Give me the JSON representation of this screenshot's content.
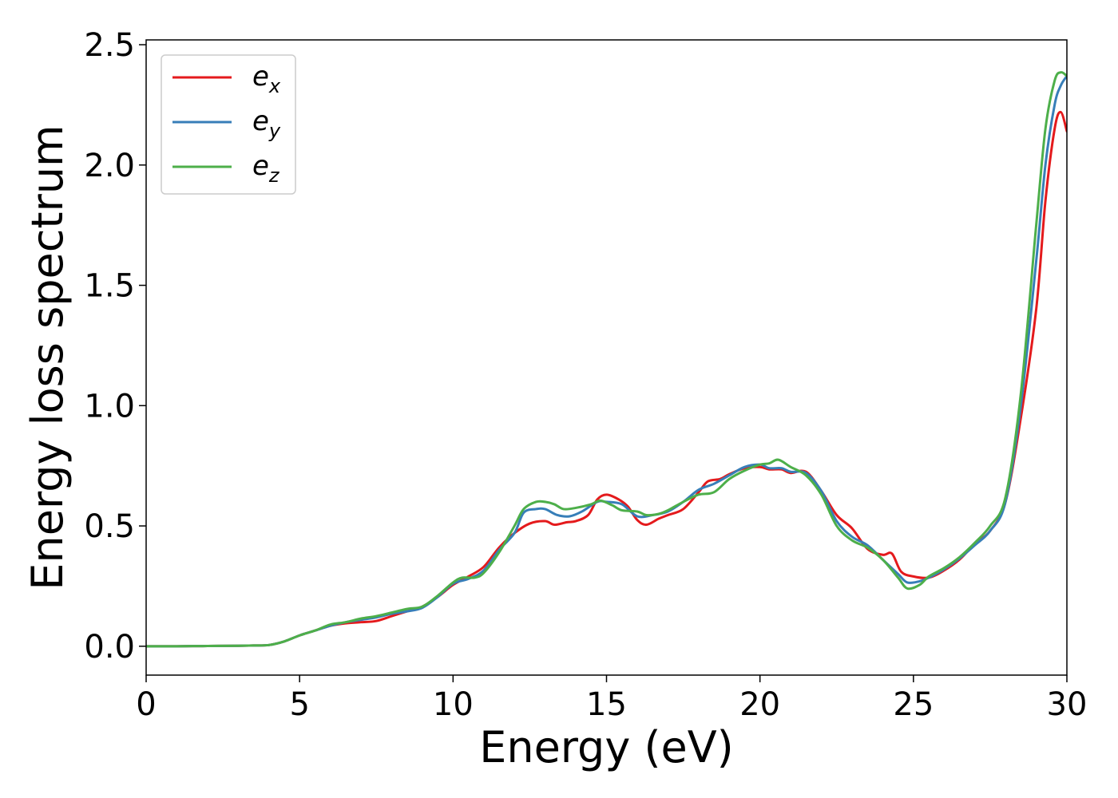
{
  "chart_data": {
    "type": "line",
    "title": "",
    "xlabel": "Energy (eV)",
    "ylabel": "Energy loss spectrum",
    "xlim": [
      0,
      30
    ],
    "ylim": [
      -0.12,
      2.52
    ],
    "xticks": [
      0,
      5,
      10,
      15,
      20,
      25,
      30
    ],
    "xtick_labels": [
      "0",
      "5",
      "10",
      "15",
      "20",
      "25",
      "30"
    ],
    "yticks": [
      0.0,
      0.5,
      1.0,
      1.5,
      2.0,
      2.5
    ],
    "ytick_labels": [
      "0.0",
      "0.5",
      "1.0",
      "1.5",
      "2.0",
      "2.5"
    ],
    "grid": false,
    "legend": "top-left",
    "series": [
      {
        "name": "e_x",
        "label_base": "e",
        "label_sub": "x",
        "color": "#e41a1c",
        "points": [
          [
            0,
            0
          ],
          [
            1,
            0
          ],
          [
            2,
            0.001
          ],
          [
            3,
            0.002
          ],
          [
            3.5,
            0.003
          ],
          [
            4,
            0.005
          ],
          [
            4.5,
            0.02
          ],
          [
            5,
            0.045
          ],
          [
            5.5,
            0.065
          ],
          [
            6,
            0.085
          ],
          [
            6.5,
            0.095
          ],
          [
            7,
            0.1
          ],
          [
            7.5,
            0.105
          ],
          [
            8,
            0.125
          ],
          [
            8.5,
            0.145
          ],
          [
            9,
            0.165
          ],
          [
            9.5,
            0.205
          ],
          [
            10,
            0.255
          ],
          [
            10.5,
            0.29
          ],
          [
            11,
            0.33
          ],
          [
            11.5,
            0.41
          ],
          [
            12,
            0.47
          ],
          [
            12.5,
            0.51
          ],
          [
            13,
            0.52
          ],
          [
            13.3,
            0.505
          ],
          [
            13.7,
            0.515
          ],
          [
            14,
            0.52
          ],
          [
            14.4,
            0.545
          ],
          [
            14.7,
            0.61
          ],
          [
            15,
            0.63
          ],
          [
            15.4,
            0.61
          ],
          [
            15.7,
            0.58
          ],
          [
            16,
            0.525
          ],
          [
            16.3,
            0.505
          ],
          [
            16.7,
            0.53
          ],
          [
            17,
            0.545
          ],
          [
            17.5,
            0.57
          ],
          [
            18,
            0.64
          ],
          [
            18.3,
            0.685
          ],
          [
            18.7,
            0.695
          ],
          [
            19,
            0.715
          ],
          [
            19.5,
            0.74
          ],
          [
            20,
            0.745
          ],
          [
            20.3,
            0.735
          ],
          [
            20.7,
            0.735
          ],
          [
            21,
            0.72
          ],
          [
            21.5,
            0.725
          ],
          [
            22,
            0.645
          ],
          [
            22.5,
            0.545
          ],
          [
            23,
            0.49
          ],
          [
            23.5,
            0.405
          ],
          [
            24,
            0.38
          ],
          [
            24.3,
            0.385
          ],
          [
            24.6,
            0.31
          ],
          [
            25,
            0.29
          ],
          [
            25.5,
            0.285
          ],
          [
            26,
            0.315
          ],
          [
            26.5,
            0.36
          ],
          [
            27,
            0.425
          ],
          [
            27.5,
            0.48
          ],
          [
            28,
            0.6
          ],
          [
            28.5,
            0.95
          ],
          [
            29,
            1.4
          ],
          [
            29.3,
            1.85
          ],
          [
            29.6,
            2.15
          ],
          [
            29.8,
            2.22
          ],
          [
            30,
            2.14
          ]
        ]
      },
      {
        "name": "e_y",
        "label_base": "e",
        "label_sub": "y",
        "color": "#377eb8",
        "points": [
          [
            0,
            0
          ],
          [
            1,
            0
          ],
          [
            2,
            0.001
          ],
          [
            3,
            0.002
          ],
          [
            3.5,
            0.003
          ],
          [
            4,
            0.005
          ],
          [
            4.5,
            0.02
          ],
          [
            5,
            0.045
          ],
          [
            5.5,
            0.065
          ],
          [
            6,
            0.085
          ],
          [
            6.5,
            0.1
          ],
          [
            7,
            0.11
          ],
          [
            7.5,
            0.12
          ],
          [
            8,
            0.135
          ],
          [
            8.5,
            0.145
          ],
          [
            9,
            0.16
          ],
          [
            9.5,
            0.205
          ],
          [
            10,
            0.26
          ],
          [
            10.5,
            0.28
          ],
          [
            11,
            0.315
          ],
          [
            11.5,
            0.4
          ],
          [
            12,
            0.47
          ],
          [
            12.3,
            0.555
          ],
          [
            12.7,
            0.57
          ],
          [
            13,
            0.57
          ],
          [
            13.4,
            0.545
          ],
          [
            13.8,
            0.54
          ],
          [
            14.2,
            0.56
          ],
          [
            14.7,
            0.6
          ],
          [
            15,
            0.6
          ],
          [
            15.5,
            0.59
          ],
          [
            16,
            0.54
          ],
          [
            16.5,
            0.545
          ],
          [
            17,
            0.56
          ],
          [
            17.5,
            0.6
          ],
          [
            18,
            0.65
          ],
          [
            18.5,
            0.675
          ],
          [
            19,
            0.71
          ],
          [
            19.5,
            0.745
          ],
          [
            20,
            0.755
          ],
          [
            20.3,
            0.74
          ],
          [
            20.7,
            0.74
          ],
          [
            21,
            0.725
          ],
          [
            21.5,
            0.72
          ],
          [
            22,
            0.645
          ],
          [
            22.5,
            0.52
          ],
          [
            23,
            0.455
          ],
          [
            23.5,
            0.42
          ],
          [
            24,
            0.36
          ],
          [
            24.5,
            0.3
          ],
          [
            24.8,
            0.265
          ],
          [
            25.2,
            0.27
          ],
          [
            25.5,
            0.285
          ],
          [
            26,
            0.32
          ],
          [
            26.5,
            0.365
          ],
          [
            27,
            0.42
          ],
          [
            27.5,
            0.48
          ],
          [
            28,
            0.6
          ],
          [
            28.5,
            1.0
          ],
          [
            29,
            1.6
          ],
          [
            29.3,
            2.0
          ],
          [
            29.6,
            2.25
          ],
          [
            29.8,
            2.33
          ],
          [
            30,
            2.37
          ]
        ]
      },
      {
        "name": "e_z",
        "label_base": "e",
        "label_sub": "z",
        "color": "#4daf4a",
        "points": [
          [
            0,
            0
          ],
          [
            1,
            0
          ],
          [
            2,
            0.001
          ],
          [
            3,
            0.002
          ],
          [
            3.5,
            0.003
          ],
          [
            4,
            0.005
          ],
          [
            4.5,
            0.02
          ],
          [
            5,
            0.045
          ],
          [
            5.5,
            0.065
          ],
          [
            6,
            0.09
          ],
          [
            6.5,
            0.1
          ],
          [
            7,
            0.115
          ],
          [
            7.5,
            0.125
          ],
          [
            8,
            0.14
          ],
          [
            8.5,
            0.155
          ],
          [
            9,
            0.165
          ],
          [
            9.5,
            0.21
          ],
          [
            10,
            0.265
          ],
          [
            10.3,
            0.285
          ],
          [
            10.7,
            0.285
          ],
          [
            11,
            0.305
          ],
          [
            11.5,
            0.39
          ],
          [
            12,
            0.5
          ],
          [
            12.3,
            0.57
          ],
          [
            12.7,
            0.6
          ],
          [
            13,
            0.6
          ],
          [
            13.3,
            0.59
          ],
          [
            13.6,
            0.57
          ],
          [
            14,
            0.575
          ],
          [
            14.5,
            0.59
          ],
          [
            14.8,
            0.605
          ],
          [
            15.2,
            0.585
          ],
          [
            15.5,
            0.565
          ],
          [
            16,
            0.56
          ],
          [
            16.3,
            0.545
          ],
          [
            16.7,
            0.55
          ],
          [
            17,
            0.565
          ],
          [
            17.5,
            0.6
          ],
          [
            18,
            0.63
          ],
          [
            18.5,
            0.64
          ],
          [
            19,
            0.695
          ],
          [
            19.5,
            0.73
          ],
          [
            20,
            0.755
          ],
          [
            20.3,
            0.76
          ],
          [
            20.6,
            0.775
          ],
          [
            21,
            0.745
          ],
          [
            21.5,
            0.71
          ],
          [
            22,
            0.63
          ],
          [
            22.5,
            0.5
          ],
          [
            23,
            0.44
          ],
          [
            23.5,
            0.41
          ],
          [
            24,
            0.36
          ],
          [
            24.5,
            0.285
          ],
          [
            24.8,
            0.24
          ],
          [
            25.2,
            0.255
          ],
          [
            25.5,
            0.29
          ],
          [
            26,
            0.325
          ],
          [
            26.5,
            0.37
          ],
          [
            27,
            0.43
          ],
          [
            27.5,
            0.5
          ],
          [
            28,
            0.62
          ],
          [
            28.5,
            1.05
          ],
          [
            29,
            1.75
          ],
          [
            29.3,
            2.15
          ],
          [
            29.6,
            2.35
          ],
          [
            29.8,
            2.385
          ],
          [
            30,
            2.37
          ]
        ]
      }
    ]
  }
}
